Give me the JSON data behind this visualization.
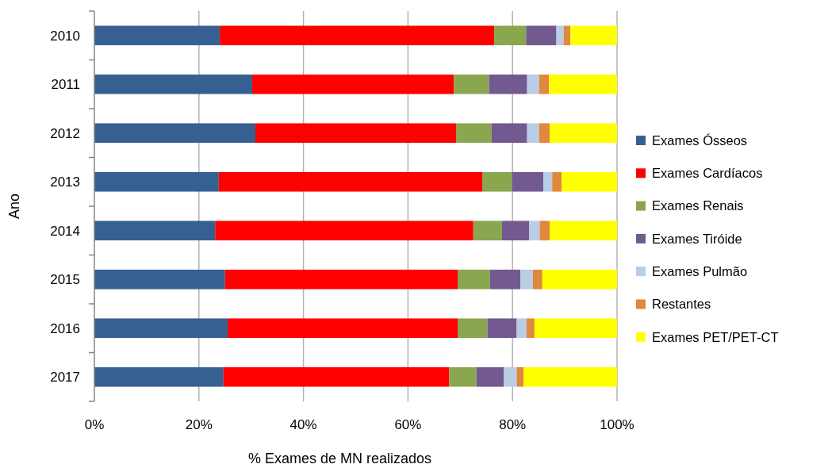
{
  "chart_data": {
    "type": "bar",
    "orientation": "horizontal",
    "stacked": true,
    "xlabel": "% Exames de MN realizados",
    "ylabel": "Ano",
    "categories": [
      "2010",
      "2011",
      "2012",
      "2013",
      "2014",
      "2015",
      "2016",
      "2017"
    ],
    "series": [
      {
        "name": "Exames Ósseos",
        "color": "#376092",
        "values": [
          24.0,
          30.2,
          30.8,
          23.8,
          23.1,
          25.0,
          25.5,
          24.7
        ]
      },
      {
        "name": "Exames Cardíacos",
        "color": "#ff0000",
        "values": [
          52.5,
          38.6,
          38.4,
          50.4,
          49.4,
          44.5,
          44.0,
          43.2
        ]
      },
      {
        "name": "Exames Renais",
        "color": "#8aa64e",
        "values": [
          6.1,
          6.7,
          6.8,
          5.7,
          5.5,
          6.2,
          5.7,
          5.2
        ]
      },
      {
        "name": "Exames Tiróide",
        "color": "#72598f",
        "values": [
          5.8,
          7.3,
          6.8,
          6.0,
          5.2,
          5.8,
          5.6,
          5.2
        ]
      },
      {
        "name": "Exames Pulmão",
        "color": "#b9cde5",
        "values": [
          1.4,
          2.3,
          2.3,
          1.7,
          2.0,
          2.4,
          1.9,
          2.5
        ]
      },
      {
        "name": "Restantes",
        "color": "#e0883c",
        "values": [
          1.3,
          1.9,
          2.0,
          1.8,
          1.9,
          1.8,
          1.5,
          1.3
        ]
      },
      {
        "name": "Exames PET/PET-CT",
        "color": "#ffff00",
        "values": [
          8.9,
          13.0,
          12.9,
          10.6,
          12.9,
          14.3,
          15.8,
          17.9
        ]
      }
    ],
    "xlim": [
      0,
      100
    ],
    "xticks": [
      {
        "value": 0,
        "label": "0%"
      },
      {
        "value": 20,
        "label": "20%"
      },
      {
        "value": 40,
        "label": "40%"
      },
      {
        "value": 60,
        "label": "60%"
      },
      {
        "value": 80,
        "label": "80%"
      },
      {
        "value": 100,
        "label": "100%"
      }
    ],
    "grid": "x",
    "legend": "right"
  }
}
